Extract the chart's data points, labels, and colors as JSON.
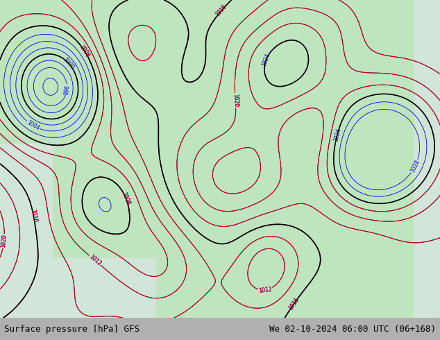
{
  "title_left": "Surface pressure [hPa] GFS",
  "title_right": "We 02-10-2024 06:00 UTC (06+168)",
  "bg_color": "#c8e6c8",
  "fig_width": 6.34,
  "fig_height": 4.9,
  "dpi": 100,
  "bottom_bar_color": "#d8d8d8",
  "text_color": "#000000",
  "font_size": 9
}
